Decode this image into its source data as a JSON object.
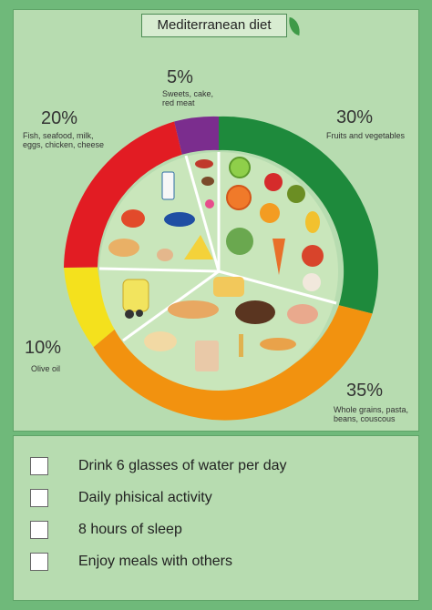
{
  "title": "Mediterranean diet",
  "segments": [
    {
      "percent": "5%",
      "label_lines": [
        "Sweets, cake,",
        "red meat"
      ],
      "color": "#7b2d8e"
    },
    {
      "percent": "30%",
      "label_lines": [
        "Fruits and vegetables"
      ],
      "color": "#1e8a3c"
    },
    {
      "percent": "35%",
      "label_lines": [
        "Whole grains, pasta,",
        "beans, couscous"
      ],
      "color": "#f2920f"
    },
    {
      "percent": "10%",
      "label_lines": [
        "Olive oil"
      ],
      "color": "#f4e11d"
    },
    {
      "percent": "20%",
      "label_lines": [
        "Fish, seafood, milk,",
        "eggs, chicken, cheese"
      ],
      "color": "#e21c23"
    }
  ],
  "checklist": [
    "Drink 6 glasses of water per day",
    "Daily phisical activity",
    "8 hours of sleep",
    "Enjoy meals with others"
  ],
  "colors": {
    "background": "#6fb97a",
    "panel": "#b7dcb0",
    "plate": "#c9e6bb"
  }
}
